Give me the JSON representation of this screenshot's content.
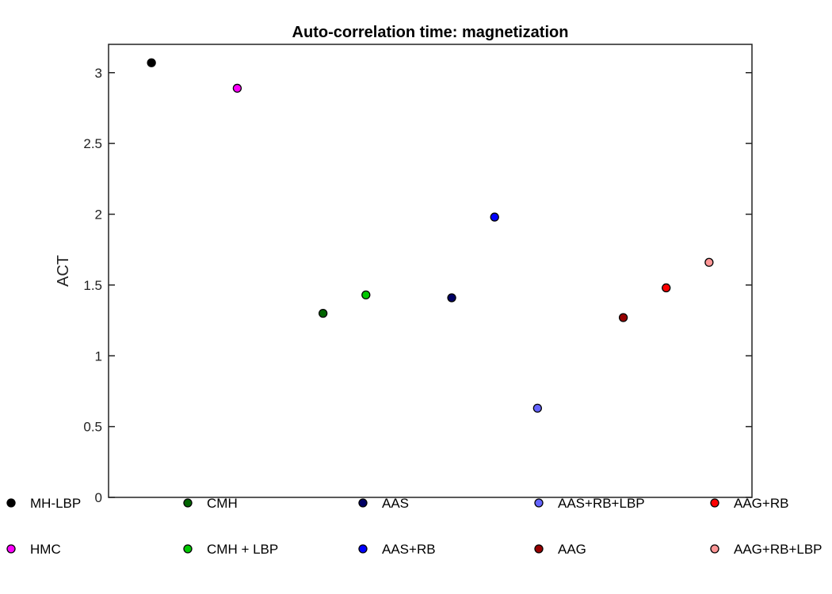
{
  "chart_data": {
    "type": "scatter",
    "title": "Auto-correlation time: magnetization",
    "xlabel": "",
    "ylabel": "ACT",
    "ylim": [
      0,
      3.2
    ],
    "yticks": [
      {
        "value": 0,
        "label": "0"
      },
      {
        "value": 0.5,
        "label": "0.5"
      },
      {
        "value": 1,
        "label": "1"
      },
      {
        "value": 1.5,
        "label": "1.5"
      },
      {
        "value": 2,
        "label": "2"
      },
      {
        "value": 2.5,
        "label": "2.5"
      },
      {
        "value": 3,
        "label": "3"
      }
    ],
    "xlim": [
      0,
      15
    ],
    "grid": false,
    "legend_position": "bottom",
    "series": [
      {
        "name": "MH-LBP",
        "color": "#000000",
        "x": 1,
        "y": 3.07
      },
      {
        "name": "HMC",
        "color": "#ff00ff",
        "x": 3,
        "y": 2.89
      },
      {
        "name": "CMH",
        "color": "#006400",
        "x": 5,
        "y": 1.3
      },
      {
        "name": "CMH + LBP",
        "color": "#00c800",
        "x": 6,
        "y": 1.43
      },
      {
        "name": "AAS",
        "color": "#000064",
        "x": 8,
        "y": 1.41
      },
      {
        "name": "AAS+RB",
        "color": "#0000ff",
        "x": 9,
        "y": 1.98
      },
      {
        "name": "AAS+RB+LBP",
        "color": "#6464ff",
        "x": 10,
        "y": 0.63
      },
      {
        "name": "AAG",
        "color": "#960000",
        "x": 12,
        "y": 1.27
      },
      {
        "name": "AAG+RB",
        "color": "#ff0000",
        "x": 13,
        "y": 1.48
      },
      {
        "name": "AAG+RB+LBP",
        "color": "#ff9696",
        "x": 14,
        "y": 1.66
      }
    ]
  }
}
